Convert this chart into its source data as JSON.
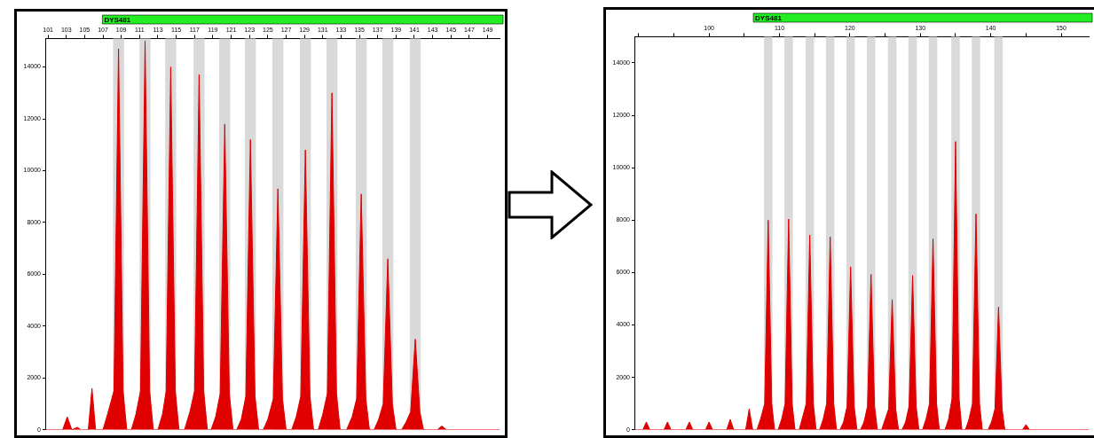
{
  "chart_data": [
    {
      "type": "area",
      "title": "DYS481",
      "xlim": [
        100.7,
        150.3
      ],
      "ylim": [
        0,
        15100
      ],
      "xticks": [
        101,
        103,
        105,
        107,
        109,
        111,
        113,
        115,
        117,
        119,
        121,
        123,
        125,
        127,
        129,
        131,
        133,
        135,
        137,
        139,
        141,
        143,
        145,
        147,
        149
      ],
      "yticks": [
        0,
        2000,
        4000,
        6000,
        8000,
        10000,
        12000,
        14000
      ],
      "grid": false,
      "legend": false,
      "marker": "none",
      "bands": [
        {
          "axis": "x",
          "from": 108.1,
          "to": 109.3,
          "color": "#d9d9d9"
        },
        {
          "axis": "x",
          "from": 111.0,
          "to": 112.2,
          "color": "#d9d9d9"
        },
        {
          "axis": "x",
          "from": 113.8,
          "to": 115.0,
          "color": "#d9d9d9"
        },
        {
          "axis": "x",
          "from": 116.9,
          "to": 118.1,
          "color": "#d9d9d9"
        },
        {
          "axis": "x",
          "from": 119.7,
          "to": 120.9,
          "color": "#d9d9d9"
        },
        {
          "axis": "x",
          "from": 122.5,
          "to": 123.7,
          "color": "#d9d9d9"
        },
        {
          "axis": "x",
          "from": 125.5,
          "to": 126.7,
          "color": "#d9d9d9"
        },
        {
          "axis": "x",
          "from": 128.5,
          "to": 129.7,
          "color": "#d9d9d9"
        },
        {
          "axis": "x",
          "from": 131.4,
          "to": 132.6,
          "color": "#d9d9d9"
        },
        {
          "axis": "x",
          "from": 134.6,
          "to": 135.8,
          "color": "#d9d9d9"
        },
        {
          "axis": "x",
          "from": 137.5,
          "to": 138.7,
          "color": "#d9d9d9"
        },
        {
          "axis": "x",
          "from": 140.5,
          "to": 141.7,
          "color": "#d9d9d9"
        }
      ],
      "series": [
        {
          "color": "#e00000",
          "x": [
            100.7,
            102.6,
            103.1,
            103.6,
            104.2,
            104.6,
            105.4,
            105.8,
            106.2,
            107.0,
            107.5,
            108.2,
            108.7,
            109.2,
            109.6,
            110.1,
            110.6,
            111.1,
            111.6,
            112.1,
            112.5,
            113.0,
            113.5,
            113.9,
            114.4,
            114.9,
            115.3,
            115.9,
            116.5,
            117.0,
            117.5,
            118.0,
            118.4,
            118.8,
            119.3,
            119.8,
            120.3,
            120.8,
            121.2,
            121.6,
            122.1,
            122.6,
            123.1,
            123.6,
            124.0,
            124.5,
            125.0,
            125.6,
            126.1,
            126.6,
            127.0,
            127.6,
            128.1,
            128.6,
            129.1,
            129.6,
            130.0,
            130.5,
            131.0,
            131.5,
            132.0,
            132.5,
            132.9,
            133.6,
            134.2,
            134.7,
            135.2,
            135.7,
            136.1,
            136.6,
            137.1,
            137.6,
            138.1,
            138.6,
            139.0,
            139.6,
            140.1,
            140.6,
            141.1,
            141.6,
            142.0,
            143.5,
            144.0,
            144.5,
            150.3
          ],
          "values": [
            0,
            0,
            500,
            0,
            100,
            0,
            0,
            1600,
            0,
            0,
            600,
            1500,
            14700,
            1500,
            0,
            0,
            600,
            1500,
            15000,
            1500,
            0,
            0,
            600,
            1500,
            14000,
            1500,
            0,
            0,
            700,
            1500,
            13700,
            1500,
            0,
            0,
            500,
            1400,
            11800,
            1400,
            0,
            0,
            400,
            1300,
            11200,
            1300,
            0,
            0,
            400,
            1200,
            9300,
            1200,
            0,
            0,
            500,
            1300,
            10800,
            1300,
            0,
            0,
            600,
            1400,
            13000,
            1400,
            0,
            0,
            500,
            1200,
            9100,
            1200,
            0,
            0,
            400,
            1000,
            6600,
            1000,
            0,
            0,
            300,
            700,
            3500,
            700,
            0,
            0,
            150,
            0,
            0
          ]
        }
      ]
    },
    {
      "type": "area",
      "title": "DYS481",
      "xlim": [
        89.4,
        153.9
      ],
      "ylim": [
        0,
        15000
      ],
      "xticks": [
        {
          "value": 90,
          "label": null
        },
        {
          "value": 95,
          "label": null
        },
        100,
        {
          "value": 105,
          "label": null
        },
        110,
        {
          "value": 115,
          "label": null
        },
        120,
        {
          "value": 125,
          "label": null
        },
        130,
        {
          "value": 135,
          "label": null
        },
        140,
        {
          "value": 145,
          "label": null
        },
        150
      ],
      "yticks": [
        0,
        2000,
        4000,
        6000,
        8000,
        10000,
        12000,
        14000
      ],
      "grid": false,
      "legend": false,
      "marker": "none",
      "bands": [
        {
          "axis": "x",
          "from": 107.8,
          "to": 109.0,
          "color": "#d9d9d9"
        },
        {
          "axis": "x",
          "from": 110.7,
          "to": 111.9,
          "color": "#d9d9d9"
        },
        {
          "axis": "x",
          "from": 113.7,
          "to": 114.9,
          "color": "#d9d9d9"
        },
        {
          "axis": "x",
          "from": 116.6,
          "to": 117.8,
          "color": "#d9d9d9"
        },
        {
          "axis": "x",
          "from": 119.5,
          "to": 120.7,
          "color": "#d9d9d9"
        },
        {
          "axis": "x",
          "from": 122.4,
          "to": 123.6,
          "color": "#d9d9d9"
        },
        {
          "axis": "x",
          "from": 125.4,
          "to": 126.6,
          "color": "#d9d9d9"
        },
        {
          "axis": "x",
          "from": 128.3,
          "to": 129.5,
          "color": "#d9d9d9"
        },
        {
          "axis": "x",
          "from": 131.2,
          "to": 132.4,
          "color": "#d9d9d9"
        },
        {
          "axis": "x",
          "from": 134.4,
          "to": 135.6,
          "color": "#d9d9d9"
        },
        {
          "axis": "x",
          "from": 137.3,
          "to": 138.5,
          "color": "#d9d9d9"
        },
        {
          "axis": "x",
          "from": 140.5,
          "to": 141.7,
          "color": "#d9d9d9"
        }
      ],
      "series": [
        {
          "color": "#e00000",
          "x": [
            89.4,
            90.6,
            91.1,
            91.6,
            93.6,
            94.1,
            94.6,
            96.7,
            97.2,
            97.7,
            99.5,
            100.0,
            100.5,
            102.5,
            103.0,
            103.5,
            105.2,
            105.7,
            106.2,
            106.8,
            107.3,
            107.9,
            108.4,
            108.9,
            109.3,
            109.8,
            110.3,
            110.8,
            111.3,
            111.8,
            112.2,
            112.8,
            113.3,
            113.8,
            114.3,
            114.8,
            115.2,
            115.7,
            116.2,
            116.7,
            117.2,
            117.7,
            118.1,
            118.6,
            119.1,
            119.6,
            120.1,
            120.6,
            121.0,
            121.5,
            122.0,
            122.5,
            123.0,
            123.5,
            123.9,
            124.5,
            125.0,
            125.5,
            126.0,
            126.5,
            126.9,
            127.4,
            127.9,
            128.4,
            128.9,
            129.4,
            129.8,
            130.3,
            130.8,
            131.3,
            131.8,
            132.3,
            132.7,
            133.5,
            134.0,
            134.5,
            135.0,
            135.5,
            135.9,
            136.4,
            136.9,
            137.4,
            137.9,
            138.4,
            138.8,
            139.6,
            140.1,
            140.6,
            141.1,
            141.6,
            142.0,
            144.5,
            145.0,
            145.5,
            153.9
          ],
          "values": [
            0,
            0,
            300,
            0,
            0,
            300,
            0,
            0,
            300,
            0,
            0,
            300,
            0,
            0,
            400,
            0,
            0,
            800,
            0,
            0,
            400,
            1000,
            8000,
            1000,
            0,
            0,
            400,
            1000,
            8040,
            1000,
            0,
            0,
            500,
            1000,
            7430,
            1000,
            0,
            0,
            400,
            1000,
            7360,
            1000,
            0,
            0,
            300,
            900,
            6220,
            900,
            0,
            0,
            300,
            900,
            5930,
            900,
            0,
            0,
            400,
            800,
            4970,
            800,
            0,
            0,
            300,
            900,
            5890,
            900,
            0,
            0,
            400,
            1000,
            7290,
            1000,
            0,
            0,
            400,
            1200,
            11000,
            1200,
            0,
            0,
            400,
            1000,
            8240,
            1000,
            0,
            0,
            300,
            800,
            4680,
            800,
            0,
            0,
            200,
            0,
            0
          ]
        }
      ]
    }
  ]
}
